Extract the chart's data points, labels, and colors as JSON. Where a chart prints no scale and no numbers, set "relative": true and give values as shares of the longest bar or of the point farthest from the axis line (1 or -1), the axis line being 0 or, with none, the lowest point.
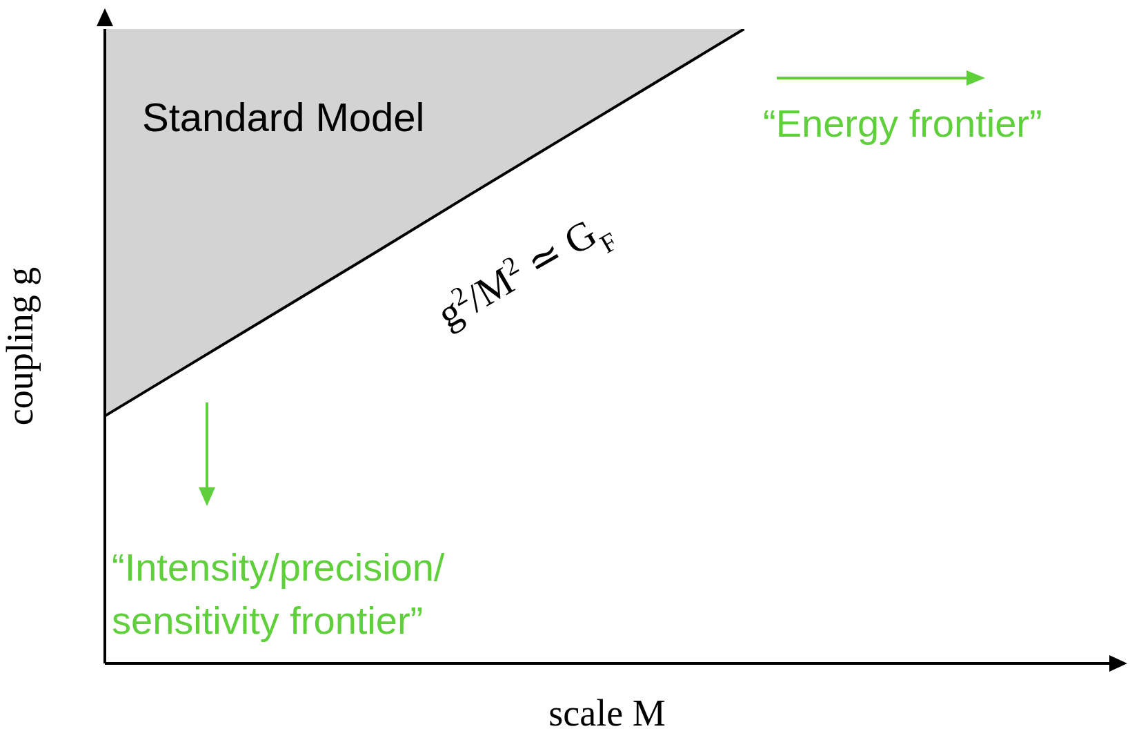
{
  "chart_data": {
    "type": "line",
    "relative": true,
    "xlabel": "scale M",
    "ylabel": "coupling g",
    "categories": [
      null,
      null,
      null,
      null,
      null,
      null,
      null,
      null,
      null,
      null,
      null,
      null
    ],
    "series": [
      {
        "color": "#000000",
        "values": [
          0.39,
          0.477,
          0.564,
          0.651,
          0.739,
          0.826,
          0.913,
          1,
          null,
          null,
          null,
          null
        ],
        "lower": [
          0.39,
          0.477,
          0.564,
          0.651,
          0.739,
          0.826,
          0.913,
          1,
          null,
          null,
          null,
          null
        ],
        "upper": [
          1,
          1,
          1,
          1,
          1,
          1,
          1,
          1,
          null,
          null,
          null,
          null
        ]
      }
    ],
    "annotations": [
      "Standard Model",
      "g$^{2}$/M$^{2}$ ≃ G$_{F}$",
      "“Energy frontier”",
      "“Intensity/precision/\nsensitivity frontier”"
    ]
  }
}
